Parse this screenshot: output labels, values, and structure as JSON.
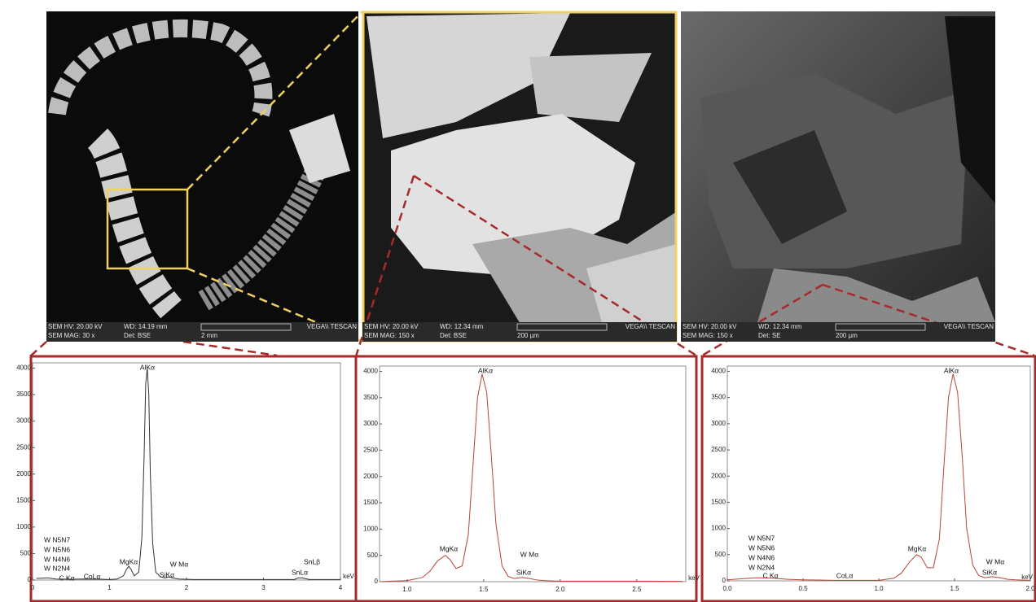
{
  "sem_images": [
    {
      "hv": "SEM HV: 20.00 kV",
      "wd": "WD: 14.19 mm",
      "brand": "VEGA\\\\ TESCAN",
      "mag": "SEM MAG: 30 x",
      "det": "Det: BSE",
      "scale": "2 mm"
    },
    {
      "hv": "SEM HV: 20.00 kV",
      "wd": "WD: 12.34 mm",
      "brand": "VEGA\\\\ TESCAN",
      "mag": "SEM MAG: 150 x",
      "det": "Det: BSE",
      "scale": "200 µm"
    },
    {
      "hv": "SEM HV: 20.00 kV",
      "wd": "WD: 12.34 mm",
      "brand": "VEGA\\\\ TESCAN",
      "mag": "SEM MAG: 150 x",
      "det": "Det: SE",
      "scale": "200 µm"
    }
  ],
  "chart_data": [
    {
      "type": "line",
      "color": "#333333",
      "x_label": "keV",
      "annotations": [
        "AlKα",
        "MgKα",
        "W Mα",
        "SiKα",
        "SnLβ",
        "SnLα",
        "C Kα",
        "CoLα",
        "W N5N7",
        "W N5N6",
        "W N4N6",
        "W N2N4"
      ],
      "x": [
        0.05,
        0.2,
        0.3,
        0.5,
        0.7,
        0.9,
        1.0,
        1.1,
        1.18,
        1.22,
        1.25,
        1.28,
        1.32,
        1.38,
        1.42,
        1.45,
        1.47,
        1.49,
        1.51,
        1.53,
        1.56,
        1.6,
        1.66,
        1.72,
        1.77,
        1.82,
        1.9,
        2.1,
        2.5,
        3.0,
        3.4,
        3.45,
        3.5,
        3.6,
        4.0
      ],
      "values": [
        30,
        40,
        20,
        15,
        20,
        15,
        10,
        20,
        80,
        200,
        260,
        200,
        80,
        150,
        800,
        2400,
        3700,
        4000,
        3500,
        2000,
        700,
        150,
        60,
        40,
        60,
        40,
        20,
        10,
        10,
        10,
        10,
        40,
        40,
        10,
        10
      ],
      "xlim": [
        0,
        4
      ],
      "ylim": [
        0,
        4100
      ],
      "xticks": [
        0,
        1,
        2,
        3,
        4
      ],
      "yticks": [
        0,
        500,
        1000,
        1500,
        2000,
        2500,
        3000,
        3500,
        4000
      ]
    },
    {
      "type": "line",
      "color": "#b5473a",
      "x_label": "keV",
      "annotations": [
        "AlKα",
        "MgKα",
        "W Mα",
        "SiKα"
      ],
      "x": [
        0.82,
        0.9,
        1.0,
        1.1,
        1.15,
        1.2,
        1.25,
        1.28,
        1.32,
        1.36,
        1.4,
        1.43,
        1.46,
        1.49,
        1.52,
        1.55,
        1.58,
        1.62,
        1.66,
        1.7,
        1.75,
        1.8,
        1.85,
        1.9,
        2.0,
        2.2,
        2.5,
        2.8
      ],
      "values": [
        0,
        10,
        20,
        80,
        200,
        400,
        500,
        420,
        250,
        300,
        900,
        2200,
        3500,
        3950,
        3600,
        2400,
        1100,
        300,
        100,
        60,
        80,
        60,
        30,
        20,
        10,
        10,
        10,
        5
      ],
      "xlim": [
        0.82,
        2.82
      ],
      "ylim": [
        0,
        4100
      ],
      "xticks": [
        {
          "value": 1,
          "label": "1.0"
        },
        1.5,
        {
          "value": 2,
          "label": "2.0"
        },
        2.5
      ],
      "yticks": [
        0,
        500,
        1000,
        1500,
        2000,
        2500,
        3000,
        3500,
        4000
      ]
    },
    {
      "type": "line",
      "color": "#b5473a",
      "x_label": "keV",
      "annotations": [
        "AlKα",
        "MgKα",
        "W Mα",
        "SiKα",
        "C Kα",
        "CoLα",
        "W N5N7",
        "W N5N6",
        "W N4N6",
        "W N2N4"
      ],
      "x": [
        0,
        0.1,
        0.2,
        0.3,
        0.4,
        0.5,
        0.6,
        0.7,
        0.8,
        0.9,
        1.0,
        1.1,
        1.15,
        1.2,
        1.25,
        1.28,
        1.32,
        1.36,
        1.4,
        1.43,
        1.46,
        1.49,
        1.52,
        1.55,
        1.58,
        1.62,
        1.66,
        1.7,
        1.75,
        1.8,
        1.85,
        1.9,
        2.0
      ],
      "values": [
        20,
        40,
        60,
        50,
        30,
        20,
        15,
        10,
        10,
        10,
        10,
        50,
        150,
        350,
        500,
        450,
        250,
        250,
        800,
        2200,
        3500,
        3950,
        3600,
        2400,
        1000,
        300,
        100,
        60,
        80,
        60,
        30,
        20,
        10
      ],
      "xlim": [
        0,
        2
      ],
      "ylim": [
        0,
        4100
      ],
      "xticks": [
        {
          "value": 0,
          "label": "0.0"
        },
        0.5,
        {
          "value": 1,
          "label": "1.0"
        },
        1.5,
        {
          "value": 2,
          "label": "2.0"
        }
      ],
      "yticks": [
        0,
        500,
        1000,
        1500,
        2000,
        2500,
        3000,
        3500,
        4000
      ]
    }
  ]
}
